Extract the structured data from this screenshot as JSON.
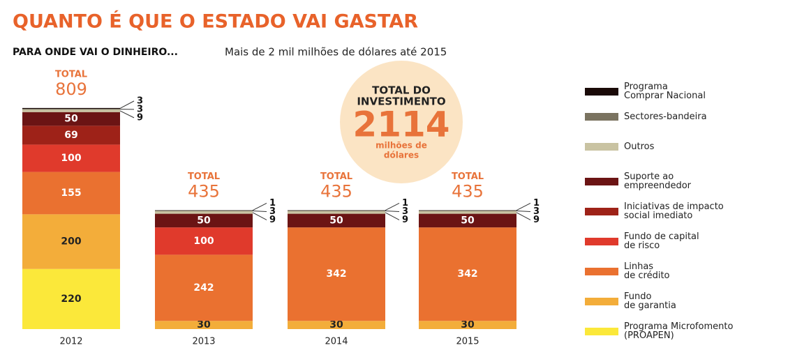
{
  "chart_data": {
    "type": "stacked_bar",
    "title": "QUANTO É QUE O ESTADO VAI GASTAR",
    "subtitle_bold": "PARA ONDE VAI O DINHEIRO...",
    "subtitle": "Mais de 2 mil milhões de dólares até 2015",
    "categories": [
      "2012",
      "2013",
      "2014",
      "2015"
    ],
    "total_label": "TOTAL",
    "totals": [
      809,
      435,
      435,
      435
    ],
    "badge": {
      "title_lines": [
        "TOTAL DO",
        "INVESTIMENTO"
      ],
      "value": 2114,
      "unit_lines": [
        "milhões de",
        "dólares"
      ]
    },
    "series": [
      {
        "name": "Programa Microfomento\n(PROAPEN)",
        "color": "#fbe83a",
        "values": [
          220,
          0,
          0,
          0
        ]
      },
      {
        "name": "Fundo\nde garantia",
        "color": "#f3ad3a",
        "values": [
          200,
          30,
          30,
          30
        ]
      },
      {
        "name": "Linhas\nde crédito",
        "color": "#ea7130",
        "values": [
          155,
          242,
          342,
          342
        ]
      },
      {
        "name": "Fundo de capital\nde risco",
        "color": "#e03a2c",
        "values": [
          100,
          100,
          0,
          0
        ]
      },
      {
        "name": "Iniciativas de impacto\nsocial imediato",
        "color": "#9e2218",
        "values": [
          69,
          0,
          0,
          0
        ]
      },
      {
        "name": "Suporte ao\nempreendedor",
        "color": "#6b1414",
        "values": [
          50,
          50,
          50,
          50
        ]
      },
      {
        "name": "Outros",
        "color": "#c9c3a2",
        "values": [
          9,
          9,
          9,
          9
        ]
      },
      {
        "name": "Sectores-bandeira",
        "color": "#7a7360",
        "values": [
          3,
          3,
          3,
          3
        ]
      },
      {
        "name": "Programa\nComprar Nacional",
        "color": "#1a0a08",
        "values": [
          3,
          1,
          1,
          1
        ]
      }
    ]
  }
}
